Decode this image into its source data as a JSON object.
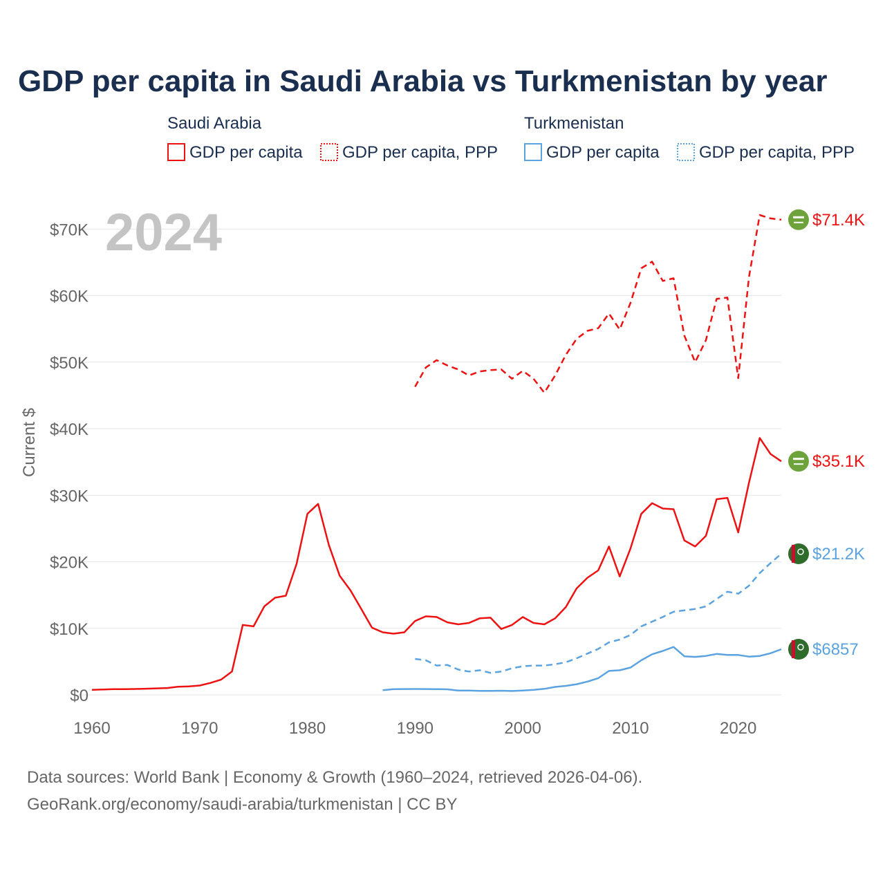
{
  "chart_data": {
    "type": "line",
    "title": "GDP per capita in Saudi Arabia vs Turkmenistan by year",
    "year_label": "2024",
    "ylabel": "Current $",
    "xlabel": "",
    "xlim": [
      1960,
      2024
    ],
    "ylim": [
      0,
      73000
    ],
    "x_ticks": [
      1960,
      1970,
      1980,
      1990,
      2000,
      2010,
      2020
    ],
    "y_ticks": [
      {
        "value": 0,
        "label": "$0"
      },
      {
        "value": 10000,
        "label": "$10K"
      },
      {
        "value": 20000,
        "label": "$20K"
      },
      {
        "value": 30000,
        "label": "$30K"
      },
      {
        "value": 40000,
        "label": "$40K"
      },
      {
        "value": 50000,
        "label": "$50K"
      },
      {
        "value": 60000,
        "label": "$60K"
      },
      {
        "value": 70000,
        "label": "$70K"
      }
    ],
    "legend_groups": [
      {
        "country": "Saudi Arabia",
        "items": [
          "GDP per capita",
          "GDP per capita, PPP"
        ]
      },
      {
        "country": "Turkmenistan",
        "items": [
          "GDP per capita",
          "GDP per capita, PPP"
        ]
      }
    ],
    "colors": {
      "saudi": "#ee1111",
      "turkmenistan": "#5ba3e0",
      "grid": "#e6e6e6",
      "title": "#1a2e4f",
      "axis_text": "#666666",
      "year_watermark": "#c4c4c4"
    },
    "series": [
      {
        "name": "Saudi Arabia GDP per capita",
        "country": "saudi",
        "style": "solid",
        "end_label": "$35.1K",
        "points": [
          [
            1960,
            750
          ],
          [
            1961,
            800
          ],
          [
            1962,
            850
          ],
          [
            1963,
            850
          ],
          [
            1964,
            880
          ],
          [
            1965,
            920
          ],
          [
            1966,
            980
          ],
          [
            1967,
            1030
          ],
          [
            1968,
            1230
          ],
          [
            1969,
            1280
          ],
          [
            1970,
            1400
          ],
          [
            1971,
            1800
          ],
          [
            1972,
            2300
          ],
          [
            1973,
            3500
          ],
          [
            1974,
            10500
          ],
          [
            1975,
            10300
          ],
          [
            1976,
            13300
          ],
          [
            1977,
            14600
          ],
          [
            1978,
            14900
          ],
          [
            1979,
            19700
          ],
          [
            1980,
            27200
          ],
          [
            1981,
            28700
          ],
          [
            1982,
            22500
          ],
          [
            1983,
            17900
          ],
          [
            1984,
            15700
          ],
          [
            1985,
            12900
          ],
          [
            1986,
            10100
          ],
          [
            1987,
            9400
          ],
          [
            1988,
            9200
          ],
          [
            1989,
            9400
          ],
          [
            1990,
            11100
          ],
          [
            1991,
            11800
          ],
          [
            1992,
            11700
          ],
          [
            1993,
            10900
          ],
          [
            1994,
            10600
          ],
          [
            1995,
            10800
          ],
          [
            1996,
            11500
          ],
          [
            1997,
            11600
          ],
          [
            1998,
            9900
          ],
          [
            1999,
            10500
          ],
          [
            2000,
            11700
          ],
          [
            2001,
            10800
          ],
          [
            2002,
            10600
          ],
          [
            2003,
            11500
          ],
          [
            2004,
            13200
          ],
          [
            2005,
            16000
          ],
          [
            2006,
            17600
          ],
          [
            2007,
            18700
          ],
          [
            2008,
            22300
          ],
          [
            2009,
            17800
          ],
          [
            2010,
            22000
          ],
          [
            2011,
            27200
          ],
          [
            2012,
            28800
          ],
          [
            2013,
            28000
          ],
          [
            2014,
            27900
          ],
          [
            2015,
            23200
          ],
          [
            2016,
            22300
          ],
          [
            2017,
            23900
          ],
          [
            2018,
            29400
          ],
          [
            2019,
            29600
          ],
          [
            2020,
            24400
          ],
          [
            2021,
            31900
          ],
          [
            2022,
            38600
          ],
          [
            2023,
            36200
          ],
          [
            2024,
            35100
          ]
        ]
      },
      {
        "name": "Saudi Arabia GDP per capita, PPP",
        "country": "saudi",
        "style": "dashed",
        "end_label": "$71.4K",
        "points": [
          [
            1990,
            46300
          ],
          [
            1991,
            49200
          ],
          [
            1992,
            50300
          ],
          [
            1993,
            49500
          ],
          [
            1994,
            48900
          ],
          [
            1995,
            48000
          ],
          [
            1996,
            48600
          ],
          [
            1997,
            48800
          ],
          [
            1998,
            48900
          ],
          [
            1999,
            47500
          ],
          [
            2000,
            48700
          ],
          [
            2001,
            47500
          ],
          [
            2002,
            45400
          ],
          [
            2003,
            48000
          ],
          [
            2004,
            51100
          ],
          [
            2005,
            53500
          ],
          [
            2006,
            54700
          ],
          [
            2007,
            55100
          ],
          [
            2008,
            57300
          ],
          [
            2009,
            54900
          ],
          [
            2010,
            58900
          ],
          [
            2011,
            64100
          ],
          [
            2012,
            65100
          ],
          [
            2013,
            62200
          ],
          [
            2014,
            62600
          ],
          [
            2015,
            54000
          ],
          [
            2016,
            50000
          ],
          [
            2017,
            53300
          ],
          [
            2018,
            59500
          ],
          [
            2019,
            59700
          ],
          [
            2020,
            47600
          ],
          [
            2021,
            62800
          ],
          [
            2022,
            72100
          ],
          [
            2023,
            71600
          ],
          [
            2024,
            71400
          ]
        ]
      },
      {
        "name": "Turkmenistan GDP per capita",
        "country": "turkmenistan",
        "style": "solid",
        "end_label": "$6857",
        "points": [
          [
            1987,
            700
          ],
          [
            1988,
            860
          ],
          [
            1989,
            870
          ],
          [
            1990,
            880
          ],
          [
            1991,
            870
          ],
          [
            1992,
            860
          ],
          [
            1993,
            830
          ],
          [
            1994,
            650
          ],
          [
            1995,
            640
          ],
          [
            1996,
            600
          ],
          [
            1997,
            600
          ],
          [
            1998,
            620
          ],
          [
            1999,
            580
          ],
          [
            2000,
            650
          ],
          [
            2001,
            750
          ],
          [
            2002,
            900
          ],
          [
            2003,
            1200
          ],
          [
            2004,
            1350
          ],
          [
            2005,
            1600
          ],
          [
            2006,
            2000
          ],
          [
            2007,
            2500
          ],
          [
            2008,
            3600
          ],
          [
            2009,
            3700
          ],
          [
            2010,
            4100
          ],
          [
            2011,
            5200
          ],
          [
            2012,
            6100
          ],
          [
            2013,
            6600
          ],
          [
            2014,
            7200
          ],
          [
            2015,
            5800
          ],
          [
            2016,
            5700
          ],
          [
            2017,
            5850
          ],
          [
            2018,
            6150
          ],
          [
            2019,
            6000
          ],
          [
            2020,
            6000
          ],
          [
            2021,
            5750
          ],
          [
            2022,
            5850
          ],
          [
            2023,
            6250
          ],
          [
            2024,
            6857
          ]
        ]
      },
      {
        "name": "Turkmenistan GDP per capita, PPP",
        "country": "turkmenistan",
        "style": "dashed",
        "end_label": "$21.2K",
        "points": [
          [
            1990,
            5400
          ],
          [
            1991,
            5200
          ],
          [
            1992,
            4400
          ],
          [
            1993,
            4500
          ],
          [
            1994,
            3800
          ],
          [
            1995,
            3500
          ],
          [
            1996,
            3700
          ],
          [
            1997,
            3300
          ],
          [
            1998,
            3500
          ],
          [
            1999,
            4000
          ],
          [
            2000,
            4300
          ],
          [
            2001,
            4400
          ],
          [
            2002,
            4400
          ],
          [
            2003,
            4600
          ],
          [
            2004,
            4900
          ],
          [
            2005,
            5500
          ],
          [
            2006,
            6200
          ],
          [
            2007,
            6900
          ],
          [
            2008,
            7900
          ],
          [
            2009,
            8300
          ],
          [
            2010,
            9000
          ],
          [
            2011,
            10300
          ],
          [
            2012,
            11000
          ],
          [
            2013,
            11700
          ],
          [
            2014,
            12500
          ],
          [
            2015,
            12700
          ],
          [
            2016,
            12900
          ],
          [
            2017,
            13300
          ],
          [
            2018,
            14400
          ],
          [
            2019,
            15500
          ],
          [
            2020,
            15200
          ],
          [
            2021,
            16400
          ],
          [
            2022,
            18300
          ],
          [
            2023,
            19800
          ],
          [
            2024,
            21200
          ]
        ]
      }
    ],
    "footer": [
      "Data sources: World Bank | Economy & Growth (1960–2024, retrieved 2026-04-06).",
      "GeoRank.org/economy/saudi-arabia/turkmenistan | CC BY"
    ]
  }
}
